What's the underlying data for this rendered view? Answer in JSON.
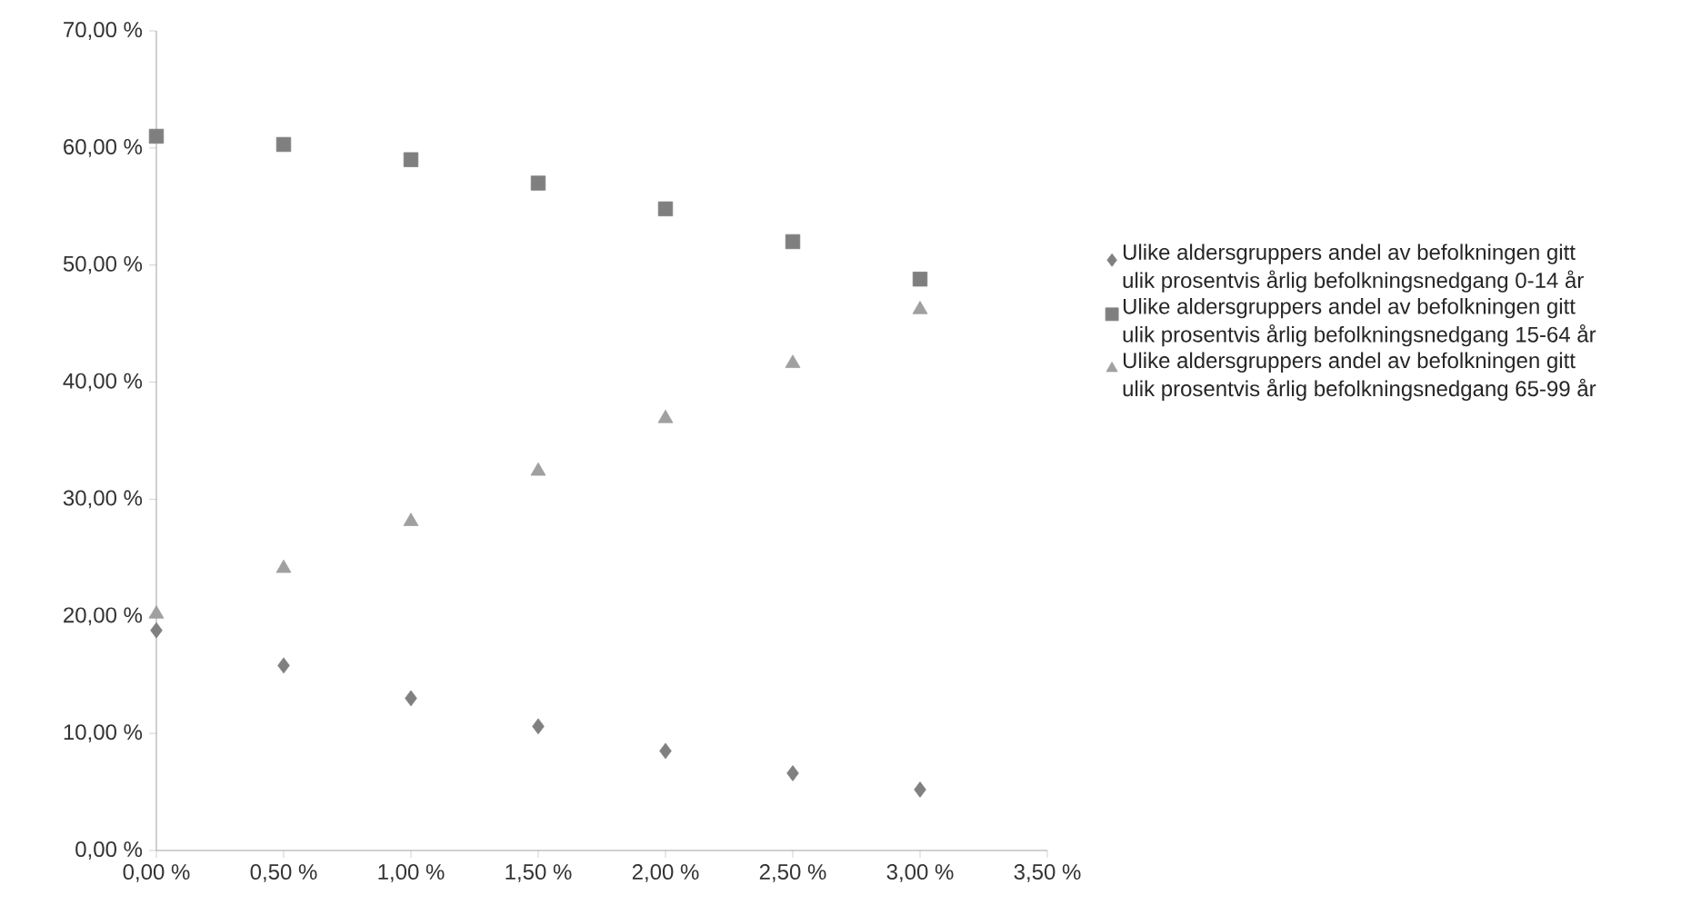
{
  "chart_data": {
    "type": "scatter",
    "x": [
      0,
      0.5,
      1,
      1.5,
      2,
      2.5,
      3
    ],
    "series": [
      {
        "name": "Ulike aldersgruppers andel av befolkningen gitt ulik prosentvis årlig befolkningsnedgang 0-14 år",
        "color": "#808080",
        "marker": "diamond",
        "values": [
          18.8,
          15.8,
          13.0,
          10.6,
          8.5,
          6.6,
          5.2
        ]
      },
      {
        "name": "Ulike aldersgruppers andel av befolkningen gitt ulik prosentvis årlig befolkningsnedgang 15-64 år",
        "color": "#7f7f7f",
        "marker": "square",
        "values": [
          61.0,
          60.3,
          59.0,
          57.0,
          54.8,
          52.0,
          48.8
        ]
      },
      {
        "name": "Ulike aldersgruppers andel av befolkningen gitt ulik prosentvis årlig befolkningsnedgang 65-99 år",
        "color": "#a0a0a0",
        "marker": "triangle",
        "values": [
          20.2,
          24.1,
          28.1,
          32.4,
          36.9,
          41.6,
          46.2
        ]
      }
    ],
    "xlim": [
      0,
      3.5
    ],
    "xticks": [
      {
        "value": 0,
        "label": "0,00 %"
      },
      {
        "value": 0.5,
        "label": "0,50 %"
      },
      {
        "value": 1,
        "label": "1,00 %"
      },
      {
        "value": 1.5,
        "label": "1,50 %"
      },
      {
        "value": 2,
        "label": "2,00 %"
      },
      {
        "value": 2.5,
        "label": "2,50 %"
      },
      {
        "value": 3,
        "label": "3,00 %"
      },
      {
        "value": 3.5,
        "label": "3,50 %"
      }
    ],
    "ylim": [
      0,
      70
    ],
    "yticks": [
      {
        "value": 0,
        "label": "0,00 %"
      },
      {
        "value": 10,
        "label": "10,00 %"
      },
      {
        "value": 20,
        "label": "20,00 %"
      },
      {
        "value": 30,
        "label": "30,00 %"
      },
      {
        "value": 40,
        "label": "40,00 %"
      },
      {
        "value": 50,
        "label": "50,00 %"
      },
      {
        "value": 60,
        "label": "60,00 %"
      },
      {
        "value": 70,
        "label": "70,00 %"
      }
    ],
    "grid": false,
    "legend": "right"
  }
}
